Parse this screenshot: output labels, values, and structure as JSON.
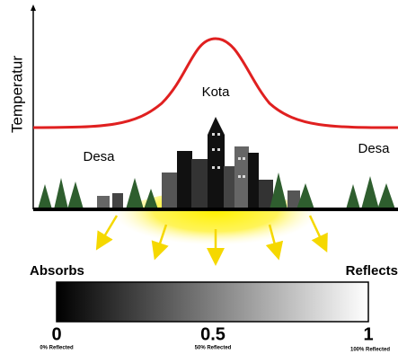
{
  "axis": {
    "label": "Temperatur"
  },
  "zones": {
    "city": "Kota",
    "rural_left": "Desa",
    "rural_right": "Desa"
  },
  "scale": {
    "left_label": "Absorbs",
    "right_label": "Reflects",
    "ticks": [
      {
        "number": "0",
        "caption": "0% Reflected"
      },
      {
        "number": "0.5",
        "caption": "50% Reflected"
      },
      {
        "number": "1",
        "caption": "100% Reflected"
      }
    ]
  }
}
